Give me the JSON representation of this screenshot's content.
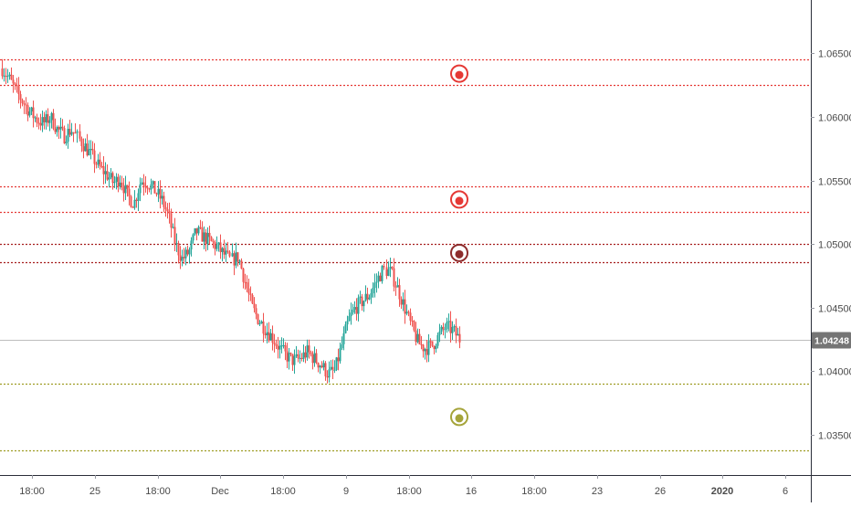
{
  "chart_data": {
    "type": "candlestick",
    "colors": {
      "up": "#26a69a",
      "down": "#ef5350",
      "background": "#ffffff",
      "axis_line": "#2a2e39",
      "tick_mark": "#9598a1",
      "price_line": "#bdbdbd",
      "price_badge": "#757575",
      "price_badge_text": "#ffffff"
    },
    "y_axis": {
      "side": "right",
      "range": [
        1.03183,
        1.06919
      ],
      "ticks": [
        "1.06500",
        "1.06000",
        "1.05500",
        "1.05000",
        "1.04500",
        "1.04000",
        "1.03500"
      ]
    },
    "x_axis": {
      "ticks": [
        "18:00",
        "25",
        "18:00",
        "Dec",
        "18:00",
        "9",
        "18:00",
        "16",
        "18:00",
        "23",
        "26",
        "2020",
        "6"
      ],
      "bold": [
        "2020"
      ]
    },
    "current_price": {
      "value": 1.04248,
      "label": "1.04248"
    },
    "horizontal_levels": [
      {
        "price": 1.0645,
        "color": "#e53935",
        "style": "dotted"
      },
      {
        "price": 1.0625,
        "color": "#e53935",
        "style": "dotted"
      },
      {
        "price": 1.0545,
        "color": "#e53935",
        "style": "dotted"
      },
      {
        "price": 1.0525,
        "color": "#e53935",
        "style": "dotted"
      },
      {
        "price": 1.05,
        "color": "#a61e1e",
        "style": "dotted"
      },
      {
        "price": 1.0486,
        "color": "#a61e1e",
        "style": "dotted"
      },
      {
        "price": 1.039,
        "color": "#9e9d24",
        "style": "dotted"
      },
      {
        "price": 1.0338,
        "color": "#9e9d24",
        "style": "dotted"
      }
    ],
    "markers": [
      {
        "price": 1.0634,
        "color": "#e53935",
        "icon": "circle-marker-icon"
      },
      {
        "price": 1.0535,
        "color": "#e53935",
        "icon": "circle-marker-icon"
      },
      {
        "price": 1.0493,
        "color": "#8d2c2c",
        "icon": "circle-marker-icon"
      },
      {
        "price": 1.0364,
        "color": "#a5a43a",
        "icon": "circle-marker-icon"
      }
    ],
    "price_path": [
      1.0638,
      1.063,
      1.062,
      1.0612,
      1.0604,
      1.0598,
      1.0595,
      1.06,
      1.059,
      1.0585,
      1.059,
      1.0583,
      1.0576,
      1.0568,
      1.056,
      1.0555,
      1.0548,
      1.0552,
      1.0538,
      1.0532,
      1.055,
      1.0548,
      1.0542,
      1.0535,
      1.0522,
      1.05,
      1.0488,
      1.0494,
      1.051,
      1.0506,
      1.0502,
      1.0498,
      1.0492,
      1.0487,
      1.049,
      1.047,
      1.045,
      1.044,
      1.0433,
      1.0426,
      1.0418,
      1.0412,
      1.0408,
      1.041,
      1.0415,
      1.041,
      1.0405,
      1.0398,
      1.04,
      1.042,
      1.044,
      1.045,
      1.0455,
      1.046,
      1.047,
      1.048,
      1.0478,
      1.0465,
      1.045,
      1.0435,
      1.0422,
      1.0418,
      1.042,
      1.0428,
      1.0435,
      1.0432,
      1.0425
    ]
  }
}
